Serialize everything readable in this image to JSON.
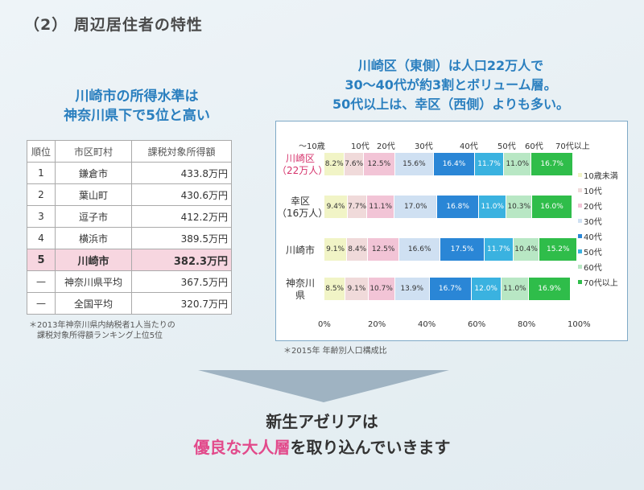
{
  "slide": {
    "title": "（2） 周辺居住者の特性"
  },
  "income": {
    "heading1": "川崎市の所得水準は",
    "heading2": "神奈川県下で5位と高い",
    "columns": [
      "順位",
      "市区町村",
      "課税対象所得額"
    ],
    "rows": [
      {
        "rank": "1",
        "city": "鎌倉市",
        "income": "433.8万円"
      },
      {
        "rank": "2",
        "city": "葉山町",
        "income": "430.6万円"
      },
      {
        "rank": "3",
        "city": "逗子市",
        "income": "412.2万円"
      },
      {
        "rank": "4",
        "city": "横浜市",
        "income": "389.5万円"
      },
      {
        "rank": "5",
        "city": "川崎市",
        "income": "382.3万円",
        "highlight": true
      },
      {
        "rank": "—",
        "city": "神奈川県平均",
        "income": "367.5万円"
      },
      {
        "rank": "—",
        "city": "全国平均",
        "income": "320.7万円"
      }
    ],
    "note1": "＊2013年神奈川県内納税者1人当たりの",
    "note2": "課税対象所得額ランキング上位5位"
  },
  "population": {
    "heading1": "川崎区（東側）は人口22万人で",
    "heading2": "30～40代が約3割とボリューム層。",
    "heading3": "50代以上は、幸区（西側）よりも多い。",
    "note": "＊2015年 年齢別人口構成比"
  },
  "chart_data": {
    "type": "bar",
    "stacked": true,
    "orientation": "horizontal",
    "categories": [
      {
        "line1": "川崎区",
        "line2": "（22万人）",
        "highlight": true
      },
      {
        "line1": "幸区",
        "line2": "（16万人）"
      },
      {
        "line1": "川崎市",
        "line2": ""
      },
      {
        "line1": "神奈川",
        "line2": "県"
      }
    ],
    "top_labels": [
      "～10歳",
      "10代",
      "20代",
      "30代",
      "40代",
      "50代",
      "60代",
      "70代以上"
    ],
    "series": [
      {
        "name": "10歳未満",
        "color": "#f1f4c6",
        "text": "light",
        "values": [
          8.2,
          9.4,
          9.1,
          8.5
        ],
        "labels": [
          "8.2%",
          "9.4%",
          "9.1%",
          "8.5%"
        ]
      },
      {
        "name": "10代",
        "color": "#f0dada",
        "text": "light",
        "values": [
          7.6,
          7.7,
          8.4,
          9.1
        ],
        "labels": [
          "7.6%",
          "7.7%",
          "8.4%",
          "9.1%"
        ]
      },
      {
        "name": "20代",
        "color": "#f2c4d6",
        "text": "light",
        "values": [
          12.5,
          11.1,
          12.5,
          10.7
        ],
        "labels": [
          "12.5%",
          "11.1%",
          "12.5%",
          "10.7%"
        ]
      },
      {
        "name": "30代",
        "color": "#cfe0f2",
        "text": "light",
        "values": [
          15.6,
          17.0,
          16.6,
          13.9
        ],
        "labels": [
          "15.6%",
          "17.0%",
          "16.6%",
          "13.9%"
        ]
      },
      {
        "name": "40代",
        "color": "#2a86d6",
        "text": "dark",
        "values": [
          16.4,
          16.8,
          17.5,
          16.7
        ],
        "labels": [
          "16.4%",
          "16.8%",
          "17.5%",
          "16.7%"
        ]
      },
      {
        "name": "50代",
        "color": "#3ab2e0",
        "text": "dark",
        "values": [
          11.7,
          11.0,
          11.7,
          12.0
        ],
        "labels": [
          "11.7%",
          "11.0%",
          "11.7%",
          "12.0%"
        ]
      },
      {
        "name": "60代",
        "color": "#b8e7c4",
        "text": "light",
        "values": [
          11.0,
          10.3,
          10.4,
          11.0
        ],
        "labels": [
          "11.0%",
          "10.3%",
          "10.4%",
          "11.0%"
        ]
      },
      {
        "name": "70代以上",
        "color": "#2fbd4a",
        "text": "dark",
        "values": [
          16.7,
          16.0,
          15.2,
          16.9
        ],
        "labels": [
          "16.7%",
          "16.0%",
          "15.2%",
          "16.9%"
        ]
      }
    ],
    "x_ticks": [
      "0%",
      "20%",
      "40%",
      "60%",
      "80%",
      "100%"
    ],
    "xlim": [
      0,
      100
    ],
    "legend_position": "right"
  },
  "conclusion": {
    "line1": "新生アゼリアは",
    "line2_highlight": "優良な大人層",
    "line2_rest": "を取り込んでいきます"
  }
}
